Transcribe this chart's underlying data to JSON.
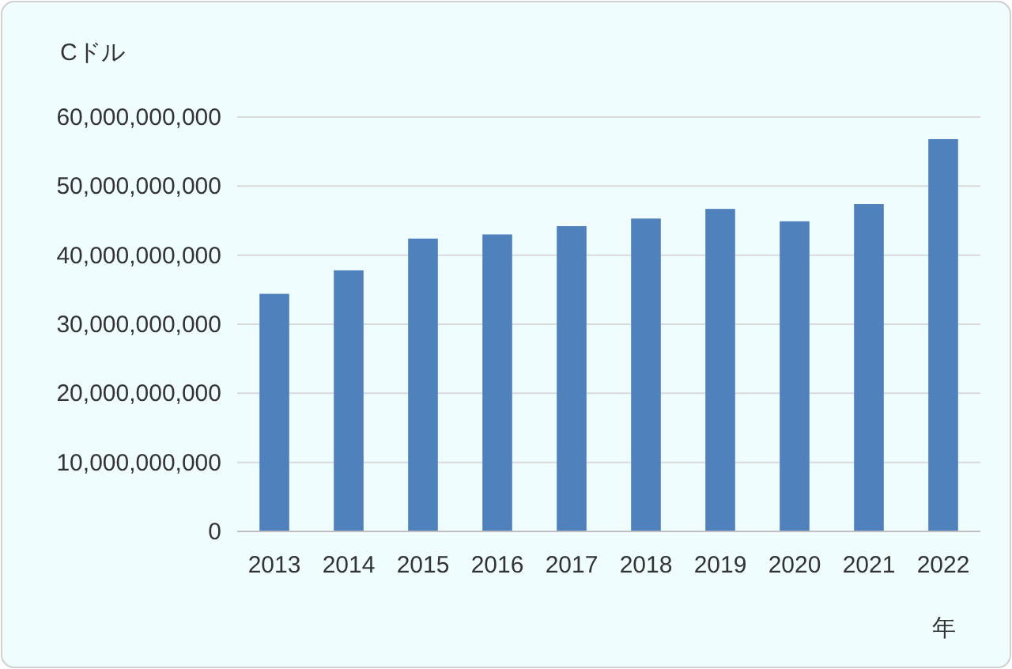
{
  "chart_data": {
    "type": "bar",
    "xlabel": "年",
    "ylabel": "Cドル",
    "categories": [
      "2013",
      "2014",
      "2015",
      "2016",
      "2017",
      "2018",
      "2019",
      "2020",
      "2021",
      "2022"
    ],
    "values": [
      34400000000,
      37800000000,
      42400000000,
      43000000000,
      44200000000,
      45300000000,
      46700000000,
      44900000000,
      47400000000,
      56800000000
    ],
    "color": "#4f81bd",
    "ylim": [
      0,
      60000000000
    ],
    "yticks": [
      {
        "value": 0,
        "label": "0"
      },
      {
        "value": 10000000000,
        "label": "10,000,000,000"
      },
      {
        "value": 20000000000,
        "label": "20,000,000,000"
      },
      {
        "value": 30000000000,
        "label": "30,000,000,000"
      },
      {
        "value": 40000000000,
        "label": "40,000,000,000"
      },
      {
        "value": 50000000000,
        "label": "50,000,000,000"
      },
      {
        "value": 60000000000,
        "label": "60,000,000,000"
      }
    ],
    "grid": "y"
  }
}
